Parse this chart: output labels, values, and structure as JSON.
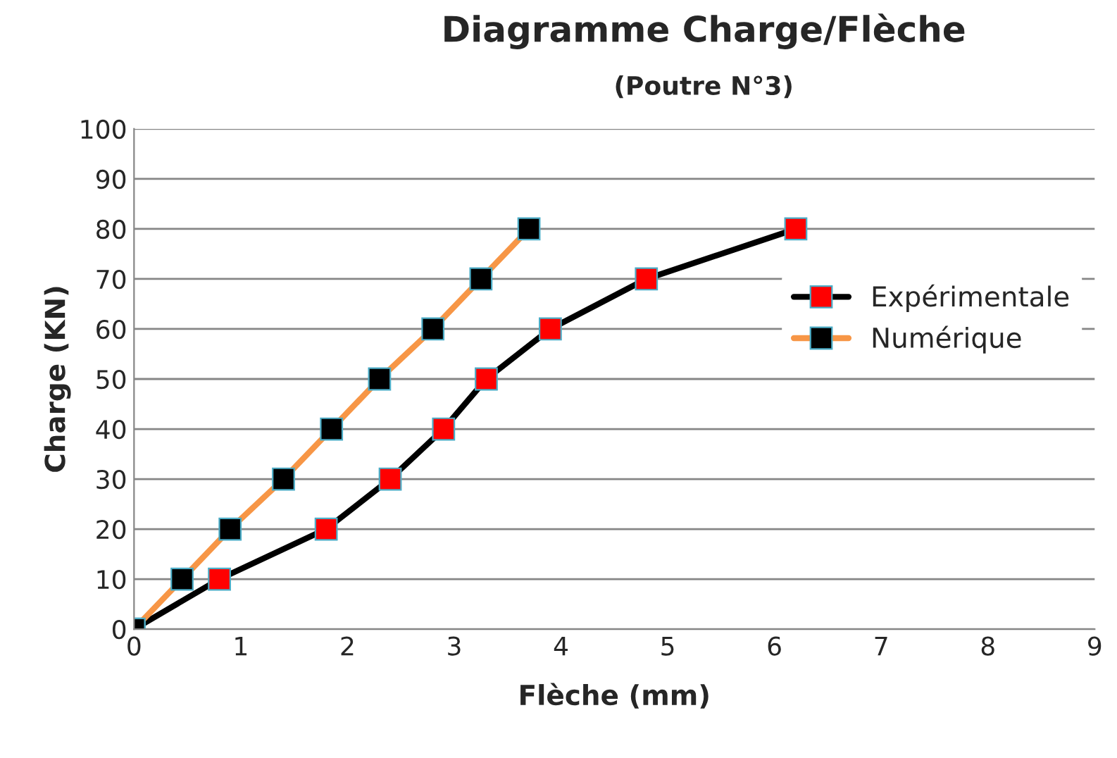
{
  "chart_data": {
    "type": "line",
    "title": "Diagramme Charge/Flèche",
    "subtitle": "(Poutre N°3)",
    "xlabel": "Flèche (mm)",
    "ylabel": "Charge (KN)",
    "series": [
      {
        "name": "Expérimentale",
        "color": "#000000",
        "x": [
          0,
          0.8,
          1.8,
          2.4,
          2.9,
          3.3,
          3.9,
          4.8,
          6.2
        ],
        "values": [
          0,
          10,
          20,
          30,
          40,
          50,
          60,
          70,
          80
        ]
      },
      {
        "name": "Numérique",
        "color": "#f79646",
        "x": [
          0,
          0.45,
          0.9,
          1.4,
          1.85,
          2.3,
          2.8,
          3.25,
          3.7
        ],
        "values": [
          0,
          10,
          20,
          30,
          40,
          50,
          60,
          70,
          80
        ]
      }
    ],
    "xlim": [
      0,
      9
    ],
    "xticks": [
      0,
      1,
      2,
      3,
      4,
      5,
      6,
      7,
      8,
      9
    ],
    "ylim": [
      0,
      100
    ],
    "yticks": [
      0,
      10,
      20,
      30,
      40,
      50,
      60,
      70,
      80,
      90,
      100
    ],
    "grid": "y",
    "legend": "right",
    "marker": "square",
    "line_style": "solid"
  }
}
